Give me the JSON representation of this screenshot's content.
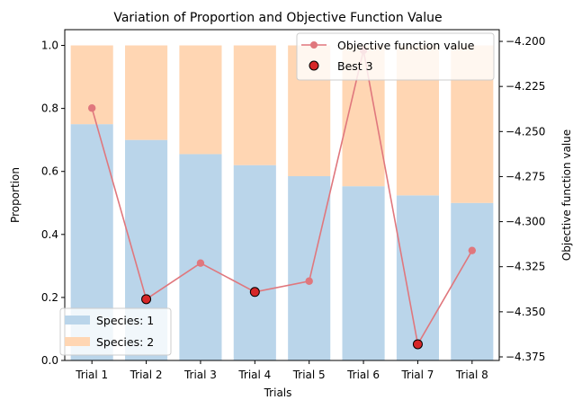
{
  "chart_data": {
    "type": "bar",
    "title": "Variation of Proportion and Objective Function Value",
    "xlabel": "Trials",
    "ylabel": "Proportion",
    "y2label": "Objective function value",
    "categories": [
      "Trial 1",
      "Trial 2",
      "Trial 3",
      "Trial 4",
      "Trial 5",
      "Trial 6",
      "Trial 7",
      "Trial 8"
    ],
    "ylim": [
      0,
      1.05
    ],
    "y2lim": [
      -4.377,
      -4.1935
    ],
    "yticks": [
      "0.0",
      "0.2",
      "0.4",
      "0.6",
      "0.8",
      "1.0"
    ],
    "y2ticks": [
      "-4.375",
      "-4.350",
      "-4.325",
      "-4.300",
      "-4.275",
      "-4.250",
      "-4.225",
      "-4.200"
    ],
    "stacked_series": [
      {
        "name": "Species: 1",
        "values": [
          0.75,
          0.7,
          0.655,
          0.62,
          0.585,
          0.553,
          0.524,
          0.5
        ],
        "color": "#bad5ea"
      },
      {
        "name": "Species: 2",
        "values": [
          0.25,
          0.3,
          0.345,
          0.38,
          0.415,
          0.447,
          0.476,
          0.5
        ],
        "color": "#ffd6b3"
      }
    ],
    "line_series": {
      "name": "Objective function value",
      "values": [
        -4.237,
        -4.343,
        -4.323,
        -4.339,
        -4.333,
        -4.205,
        -4.368,
        -4.316
      ],
      "color": "#e0777d"
    },
    "best_series": {
      "name": "Best 3",
      "indices": [
        1,
        3,
        6
      ],
      "color": "#d62728"
    },
    "legend_left_position": "lower-left",
    "legend_right_position": "upper-right",
    "grid": false
  }
}
